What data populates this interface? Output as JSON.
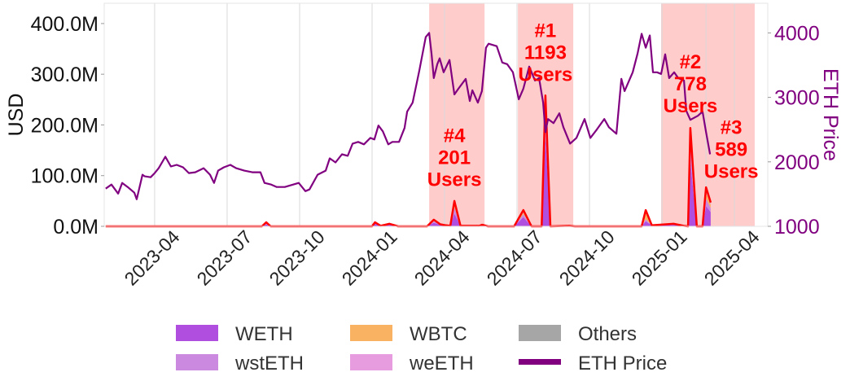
{
  "chart_data": {
    "type": "area",
    "title": "",
    "xlabel": "",
    "ylabel": "USD",
    "ylabel_right": "ETH Price",
    "x_units": "decimal year",
    "xlim": [
      2023.076,
      2025.365
    ],
    "ylim": [
      0,
      440
    ],
    "ylim_units": "million USD",
    "ylim_right": [
      1000,
      4460
    ],
    "grid": true,
    "legend_placement": "bottom-center",
    "x_ticks": [
      {
        "value": 2023.25,
        "label": "2023-04"
      },
      {
        "value": 2023.5,
        "label": "2023-07"
      },
      {
        "value": 2023.75,
        "label": "2023-10"
      },
      {
        "value": 2024.0,
        "label": "2024-01"
      },
      {
        "value": 2024.25,
        "label": "2024-04"
      },
      {
        "value": 2024.5,
        "label": "2024-07"
      },
      {
        "value": 2024.75,
        "label": "2024-10"
      },
      {
        "value": 2025.0,
        "label": "2025-01"
      },
      {
        "value": 2025.25,
        "label": "2025-04"
      }
    ],
    "y_ticks": [
      {
        "value": 0,
        "label": "0.0M"
      },
      {
        "value": 100,
        "label": "100.0M"
      },
      {
        "value": 200,
        "label": "200.0M"
      },
      {
        "value": 300,
        "label": "300.0M"
      },
      {
        "value": 400,
        "label": "400.0M"
      }
    ],
    "y_ticks_right": [
      {
        "value": 1000,
        "label": "1000"
      },
      {
        "value": 2000,
        "label": "2000"
      },
      {
        "value": 3000,
        "label": "3000"
      },
      {
        "value": 4000,
        "label": "4000"
      }
    ],
    "shaded_periods": [
      [
        2024.197,
        2024.388
      ],
      [
        2024.503,
        2024.694
      ],
      [
        2024.997,
        2025.32
      ]
    ],
    "event_lines": [
      2025.152
    ],
    "stack": {
      "x": [
        2023.081,
        2023.62,
        2023.635,
        2023.65,
        2024.0,
        2024.01,
        2024.03,
        2024.06,
        2024.09,
        2024.19,
        2024.213,
        2024.235,
        2024.255,
        2024.27,
        2024.284,
        2024.305,
        2024.37,
        2024.38,
        2024.4,
        2024.49,
        2024.522,
        2024.55,
        2024.585,
        2024.598,
        2024.615,
        2024.68,
        2024.7,
        2024.93,
        2024.944,
        2024.965,
        2025.04,
        2025.075,
        2025.09,
        2025.098,
        2025.12,
        2025.14,
        2025.152,
        2025.168
      ],
      "series": [
        {
          "name": "WETH",
          "color": "#b04ee0",
          "values": [
            0,
            0,
            4,
            0,
            0,
            5,
            1,
            3,
            0,
            0,
            7,
            3,
            2,
            1,
            25,
            1,
            1,
            3,
            0,
            0,
            18,
            0,
            0,
            180,
            0,
            1,
            0,
            0,
            10,
            2,
            3,
            1,
            0,
            130,
            0,
            0,
            40,
            28
          ]
        },
        {
          "name": "wstETH",
          "color": "#cb8ae0",
          "values": [
            0,
            0,
            2,
            0,
            0,
            2,
            0,
            1,
            0,
            0,
            3,
            1,
            0,
            0,
            12,
            0,
            0,
            0,
            0,
            0,
            6,
            0,
            0,
            45,
            0,
            0,
            0,
            0,
            4,
            0,
            1,
            0,
            0,
            35,
            0,
            0,
            15,
            8
          ]
        },
        {
          "name": "WBTC",
          "color": "#f9b262",
          "values": [
            0,
            0,
            1,
            0,
            0,
            1,
            0,
            1,
            0,
            0,
            2,
            0,
            0,
            0,
            5,
            0,
            0,
            0,
            0,
            0,
            3,
            0,
            0,
            10,
            0,
            0,
            0,
            0,
            14,
            0,
            1,
            0,
            0,
            10,
            0,
            0,
            12,
            6
          ]
        },
        {
          "name": "weETH",
          "color": "#e89ce0",
          "values": [
            0,
            0,
            0,
            0,
            0,
            0,
            0,
            0,
            0,
            0,
            1,
            0,
            0,
            0,
            6,
            0,
            0,
            0,
            0,
            0,
            4,
            0,
            0,
            18,
            0,
            0,
            0,
            0,
            2,
            0,
            0,
            0,
            0,
            15,
            0,
            0,
            6,
            3
          ]
        },
        {
          "name": "Others",
          "color": "#a6a6a6",
          "values": [
            0,
            0,
            1,
            0,
            0,
            0,
            0,
            0,
            0,
            0,
            0,
            0,
            0,
            0,
            2,
            0,
            0,
            0,
            0,
            0,
            1,
            0,
            0,
            5,
            0,
            0,
            0,
            0,
            2,
            0,
            0,
            0,
            0,
            4,
            0,
            0,
            4,
            2
          ]
        }
      ],
      "total_line_color": "#ff0000"
    },
    "eth_price": {
      "name": "ETH Price",
      "color": "#800080",
      "x": [
        2023.081,
        2023.101,
        2023.124,
        2023.138,
        2023.157,
        2023.18,
        2023.188,
        2023.208,
        2023.216,
        2023.236,
        2023.25,
        2023.264,
        2023.287,
        2023.306,
        2023.326,
        2023.348,
        2023.368,
        2023.39,
        2023.419,
        2023.441,
        2023.455,
        2023.469,
        2023.489,
        2023.511,
        2023.531,
        2023.559,
        2023.587,
        2023.615,
        2023.629,
        2023.652,
        2023.671,
        2023.699,
        2023.728,
        2023.747,
        2023.77,
        2023.784,
        2023.812,
        2023.84,
        2023.854,
        2023.874,
        2023.896,
        2023.916,
        2023.933,
        2023.952,
        2023.972,
        2023.994,
        2024.008,
        2024.022,
        2024.037,
        2024.056,
        2024.07,
        2024.093,
        2024.112,
        2024.121,
        2024.14,
        2024.163,
        2024.185,
        2024.197,
        2024.205,
        2024.213,
        2024.225,
        2024.233,
        2024.247,
        2024.267,
        2024.284,
        2024.298,
        2024.323,
        2024.337,
        2024.346,
        2024.365,
        2024.379,
        2024.393,
        2024.402,
        2024.43,
        2024.449,
        2024.466,
        2024.486,
        2024.506,
        2024.522,
        2024.542,
        2024.562,
        2024.576,
        2024.59,
        2024.598,
        2024.607,
        2024.626,
        2024.646,
        2024.66,
        2024.683,
        2024.705,
        2024.733,
        2024.753,
        2024.775,
        2024.801,
        2024.817,
        2024.843,
        2024.86,
        2024.871,
        2024.899,
        2024.916,
        2024.93,
        2024.944,
        2024.958,
        2024.969,
        2024.983,
        2024.997,
        2025.011,
        2025.025,
        2025.042,
        2025.056,
        2025.076,
        2025.084,
        2025.098,
        2025.124,
        2025.14,
        2025.152,
        2025.166
      ],
      "values": [
        1585,
        1648,
        1508,
        1673,
        1610,
        1521,
        1420,
        1800,
        1775,
        1762,
        1826,
        1902,
        2080,
        1928,
        1953,
        1915,
        1826,
        1839,
        1902,
        1800,
        1673,
        1864,
        1915,
        1953,
        1902,
        1864,
        1839,
        1839,
        1673,
        1648,
        1610,
        1610,
        1648,
        1673,
        1546,
        1572,
        1800,
        1864,
        2055,
        1991,
        2118,
        2093,
        2283,
        2309,
        2271,
        2372,
        2347,
        2563,
        2474,
        2271,
        2309,
        2309,
        2525,
        2779,
        2918,
        3414,
        3935,
        4000,
        3681,
        3300,
        3516,
        3605,
        3389,
        3580,
        3046,
        3135,
        3287,
        2944,
        3110,
        2918,
        3097,
        3770,
        3833,
        3795,
        3541,
        3516,
        3389,
        2970,
        3135,
        3478,
        3262,
        3300,
        2918,
        2461,
        2664,
        2601,
        2753,
        2537,
        2283,
        2372,
        2664,
        2372,
        2499,
        2664,
        2537,
        2436,
        3287,
        3097,
        3389,
        3681,
        3986,
        3770,
        3961,
        3389,
        3389,
        3364,
        3668,
        3300,
        3389,
        3300,
        3262,
        2792,
        2652,
        2715,
        2779,
        2461,
        2118
      ]
    },
    "annotations": [
      {
        "x": 2024.284,
        "y": 181,
        "lines": [
          "#4",
          "201",
          "Users"
        ]
      },
      {
        "x": 2024.598,
        "y": 388,
        "lines": [
          "#1",
          "1193",
          "Users"
        ]
      },
      {
        "x": 2025.098,
        "y": 326,
        "lines": [
          "#2",
          "778",
          "Users"
        ]
      },
      {
        "x": 2025.239,
        "y": 197,
        "lines": [
          "#3",
          "589",
          "Users"
        ]
      }
    ],
    "annotation_color": "#ff0000",
    "shade_color": "#ffcccc",
    "legend": [
      {
        "label": "WETH",
        "color": "#b04ee0",
        "kind": "patch"
      },
      {
        "label": "wstETH",
        "color": "#cb8ae0",
        "kind": "patch"
      },
      {
        "label": "WBTC",
        "color": "#f9b262",
        "kind": "patch"
      },
      {
        "label": "weETH",
        "color": "#e89ce0",
        "kind": "patch"
      },
      {
        "label": "Others",
        "color": "#a6a6a6",
        "kind": "patch"
      },
      {
        "label": "ETH Price",
        "color": "#800080",
        "kind": "line"
      }
    ]
  }
}
